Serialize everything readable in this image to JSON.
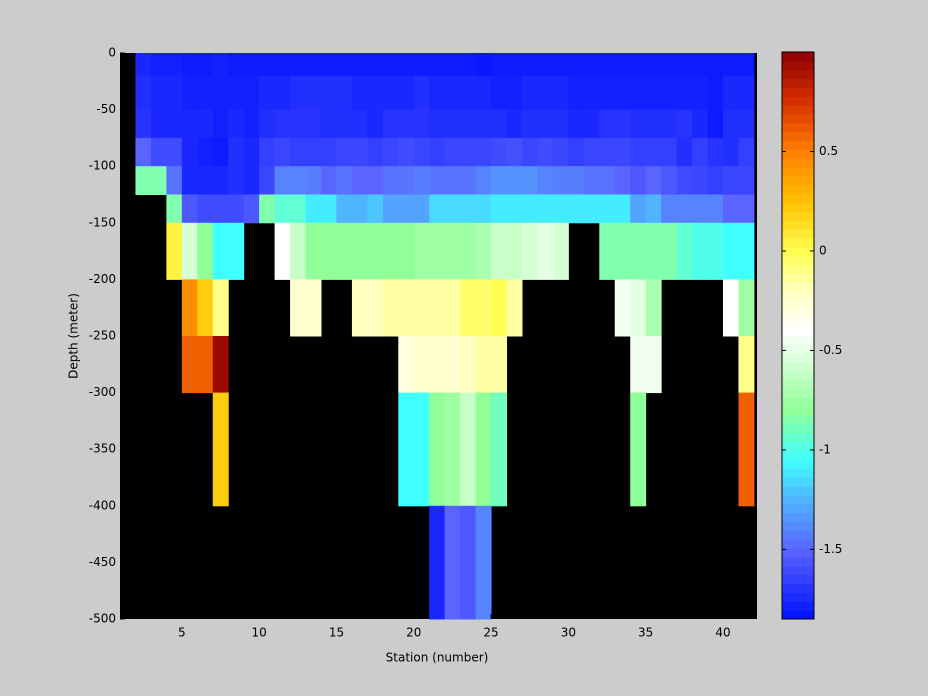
{
  "chart_data": {
    "type": "heatmap",
    "xlabel": "Station (number)",
    "ylabel": "Depth (meter)",
    "x_edges": [
      2,
      3,
      4,
      5,
      6,
      7,
      8,
      9,
      10,
      11,
      12,
      13,
      14,
      15,
      16,
      17,
      18,
      19,
      20,
      21,
      22,
      23,
      24,
      25,
      26,
      27,
      28,
      29,
      30,
      31,
      32,
      33,
      34,
      35,
      36,
      37,
      38,
      39,
      40,
      41,
      42
    ],
    "y_edges": [
      0,
      -20,
      -50,
      -75,
      -100,
      -125,
      -150,
      -200,
      -250,
      -300,
      -400,
      -500
    ],
    "z": [
      [
        -1.75,
        -1.78,
        -1.78,
        -1.8,
        -1.8,
        -1.78,
        -1.8,
        -1.8,
        -1.8,
        -1.8,
        -1.8,
        -1.8,
        -1.8,
        -1.8,
        -1.8,
        -1.8,
        -1.8,
        -1.8,
        -1.8,
        -1.8,
        -1.8,
        -1.8,
        -1.82,
        -1.8,
        -1.8,
        -1.8,
        -1.8,
        -1.8,
        -1.8,
        -1.8,
        -1.8,
        -1.8,
        -1.8,
        -1.8,
        -1.8,
        -1.8,
        -1.8,
        -1.8,
        -1.8,
        -1.8
      ],
      [
        -1.72,
        -1.75,
        -1.75,
        -1.78,
        -1.78,
        -1.78,
        -1.78,
        -1.78,
        -1.75,
        -1.75,
        -1.72,
        -1.72,
        -1.72,
        -1.72,
        -1.75,
        -1.75,
        -1.75,
        -1.75,
        -1.72,
        -1.75,
        -1.75,
        -1.75,
        -1.75,
        -1.78,
        -1.78,
        -1.75,
        -1.75,
        -1.75,
        -1.78,
        -1.78,
        -1.78,
        -1.78,
        -1.78,
        -1.78,
        -1.78,
        -1.78,
        -1.78,
        -1.8,
        -1.75,
        -1.75
      ],
      [
        -1.7,
        -1.75,
        -1.75,
        -1.75,
        -1.75,
        -1.78,
        -1.75,
        -1.78,
        -1.72,
        -1.7,
        -1.7,
        -1.7,
        -1.72,
        -1.72,
        -1.72,
        -1.75,
        -1.7,
        -1.7,
        -1.7,
        -1.72,
        -1.72,
        -1.72,
        -1.72,
        -1.72,
        -1.75,
        -1.72,
        -1.72,
        -1.72,
        -1.75,
        -1.75,
        -1.7,
        -1.7,
        -1.72,
        -1.72,
        -1.72,
        -1.7,
        -1.75,
        -1.8,
        -1.72,
        -1.72
      ],
      [
        -1.5,
        -1.6,
        -1.6,
        -1.75,
        -1.78,
        -1.8,
        -1.72,
        -1.75,
        -1.65,
        -1.62,
        -1.65,
        -1.65,
        -1.65,
        -1.62,
        -1.62,
        -1.65,
        -1.62,
        -1.6,
        -1.62,
        -1.65,
        -1.62,
        -1.62,
        -1.62,
        -1.6,
        -1.58,
        -1.62,
        -1.6,
        -1.62,
        -1.65,
        -1.62,
        -1.62,
        -1.62,
        -1.65,
        -1.65,
        -1.65,
        -1.72,
        -1.65,
        -1.7,
        -1.72,
        -1.65
      ],
      [
        -0.85,
        -0.85,
        -1.45,
        -1.75,
        -1.75,
        -1.75,
        -1.72,
        -1.75,
        -1.62,
        -1.4,
        -1.4,
        -1.42,
        -1.5,
        -1.45,
        -1.5,
        -1.5,
        -1.45,
        -1.45,
        -1.42,
        -1.45,
        -1.45,
        -1.45,
        -1.4,
        -1.35,
        -1.35,
        -1.35,
        -1.4,
        -1.42,
        -1.42,
        -1.45,
        -1.45,
        -1.5,
        -1.55,
        -1.5,
        -1.55,
        -1.6,
        -1.62,
        -1.65,
        -1.62,
        -1.62
      ],
      [
        null,
        null,
        -0.85,
        -1.55,
        -1.6,
        -1.6,
        -1.6,
        -1.55,
        -0.85,
        -0.95,
        -0.95,
        -1.1,
        -1.1,
        -1.25,
        -1.25,
        -1.2,
        -1.3,
        -1.3,
        -1.3,
        -1.15,
        -1.15,
        -1.15,
        -1.15,
        -1.1,
        -1.1,
        -1.1,
        -1.1,
        -1.1,
        -1.1,
        -1.1,
        -1.1,
        -1.1,
        -1.3,
        -1.25,
        -1.4,
        -1.4,
        -1.4,
        -1.4,
        -1.5,
        -1.5
      ],
      [
        null,
        null,
        0.05,
        -0.55,
        -0.8,
        -1.05,
        -1.05,
        null,
        null,
        -0.4,
        -0.6,
        -0.8,
        -0.8,
        -0.8,
        -0.8,
        -0.8,
        -0.8,
        -0.8,
        -0.75,
        -0.75,
        -0.75,
        -0.75,
        -0.7,
        -0.6,
        -0.6,
        -0.55,
        -0.5,
        -0.55,
        null,
        null,
        -0.85,
        -0.85,
        -0.85,
        -0.85,
        -0.85,
        -0.95,
        -1.0,
        -1.0,
        -1.05,
        -1.05
      ],
      [
        null,
        null,
        null,
        0.45,
        0.2,
        -0.1,
        null,
        null,
        null,
        null,
        -0.25,
        -0.25,
        null,
        null,
        -0.2,
        -0.2,
        -0.15,
        -0.15,
        -0.15,
        -0.15,
        -0.15,
        -0.05,
        -0.05,
        0.0,
        -0.15,
        null,
        null,
        null,
        null,
        null,
        null,
        -0.45,
        -0.5,
        -0.7,
        null,
        null,
        null,
        null,
        -0.4,
        -0.75
      ],
      [
        null,
        null,
        null,
        0.6,
        0.6,
        0.95,
        null,
        null,
        null,
        null,
        null,
        null,
        null,
        null,
        null,
        null,
        null,
        -0.3,
        -0.25,
        -0.25,
        -0.25,
        -0.2,
        -0.15,
        -0.15,
        null,
        null,
        null,
        null,
        null,
        null,
        null,
        null,
        -0.45,
        -0.45,
        null,
        null,
        null,
        null,
        null,
        -0.1
      ],
      [
        null,
        null,
        null,
        null,
        null,
        0.2,
        null,
        null,
        null,
        null,
        null,
        null,
        null,
        null,
        null,
        null,
        null,
        -1.05,
        -1.05,
        -0.8,
        -0.75,
        -0.6,
        -0.8,
        -0.9,
        null,
        null,
        null,
        null,
        null,
        null,
        null,
        null,
        -0.8,
        null,
        null,
        null,
        null,
        null,
        null,
        0.6
      ],
      [
        null,
        null,
        null,
        null,
        null,
        null,
        null,
        null,
        null,
        null,
        null,
        null,
        null,
        null,
        null,
        null,
        null,
        null,
        null,
        -1.75,
        -1.5,
        -1.55,
        -1.4,
        null,
        null,
        null,
        null,
        null,
        null,
        null,
        null,
        null,
        null,
        null,
        null,
        null,
        null,
        null,
        null,
        null
      ]
    ],
    "xlim": [
      1,
      42.2
    ],
    "xticks": [
      5,
      10,
      15,
      20,
      25,
      30,
      35,
      40
    ],
    "ylim": [
      -500,
      0
    ],
    "yticks": [
      0,
      -50,
      -100,
      -150,
      -200,
      -250,
      -300,
      -350,
      -400,
      -450,
      -500
    ],
    "clim": [
      -1.85,
      1.0
    ],
    "cticks": [
      0.5,
      0,
      -0.5,
      -1,
      -1.5
    ],
    "colormap": [
      {
        "value": -1.85,
        "color": "#0010ff"
      },
      {
        "value": -1.5,
        "color": "#5a64ff"
      },
      {
        "value": -1.25,
        "color": "#50b4ff"
      },
      {
        "value": -1.05,
        "color": "#40ffff"
      },
      {
        "value": -0.8,
        "color": "#90ff98"
      },
      {
        "value": -0.6,
        "color": "#c8ffc8"
      },
      {
        "value": -0.4,
        "color": "#ffffff"
      },
      {
        "value": -0.2,
        "color": "#ffffc0"
      },
      {
        "value": 0,
        "color": "#ffff50"
      },
      {
        "value": 0.25,
        "color": "#ffc000"
      },
      {
        "value": 0.5,
        "color": "#ff8000"
      },
      {
        "value": 0.75,
        "color": "#d83000"
      },
      {
        "value": 1.0,
        "color": "#8c0000"
      }
    ],
    "nan_color": "#000000"
  }
}
